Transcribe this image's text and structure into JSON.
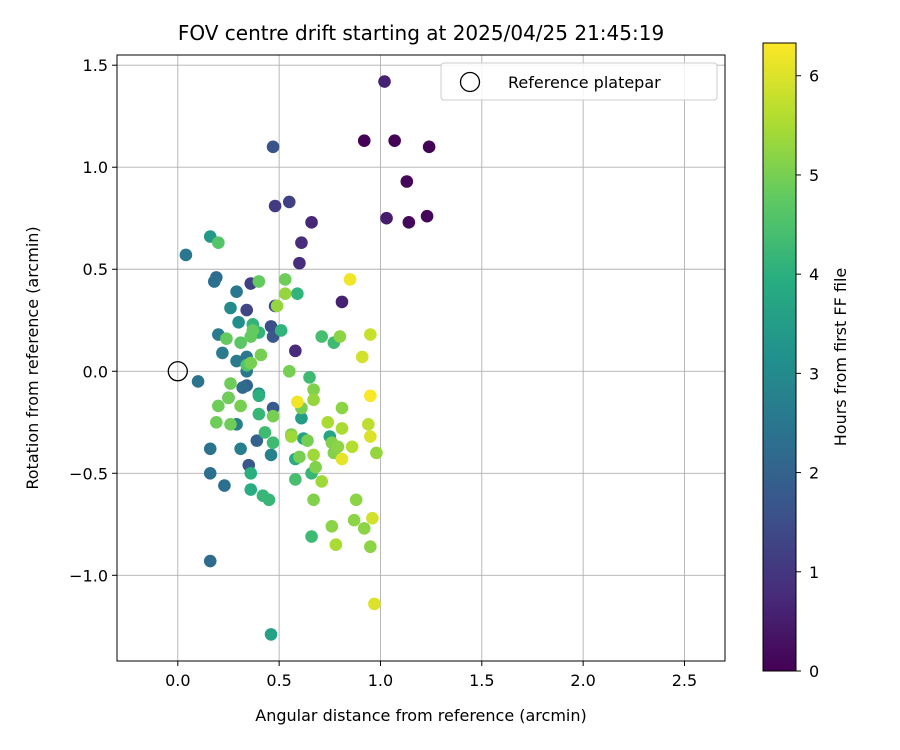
{
  "chart_data": {
    "type": "scatter",
    "title": "FOV centre drift starting at 2025/04/25 21:45:19",
    "xlabel": "Angular distance from reference (arcmin)",
    "ylabel": "Rotation from reference (arcmin)",
    "xlim": [
      -0.3,
      2.7
    ],
    "ylim": [
      -1.42,
      1.55
    ],
    "xticks": [
      "0.0",
      "0.5",
      "1.0",
      "1.5",
      "2.0",
      "2.5"
    ],
    "yticks": [
      "−1.0",
      "−0.5",
      "0.0",
      "0.5",
      "1.0",
      "1.5"
    ],
    "grid": true,
    "legend": {
      "placement": "upper right",
      "entries": [
        "Reference platepar"
      ]
    },
    "reference_point": {
      "x": 0.0,
      "y": 0.0
    },
    "colorbar": {
      "label": "Hours from first FF file",
      "range": [
        0,
        6.33
      ],
      "ticks": [
        "0",
        "1",
        "2",
        "3",
        "4",
        "5",
        "6"
      ],
      "colormap": "viridis"
    },
    "series": [
      {
        "values": [
          {
            "x": 0.92,
            "y": 1.13,
            "h": 0.05
          },
          {
            "x": 1.07,
            "y": 1.13,
            "h": 0.05
          },
          {
            "x": 1.24,
            "y": 1.1,
            "h": 0.05
          },
          {
            "x": 1.13,
            "y": 0.93,
            "h": 0.1
          },
          {
            "x": 1.23,
            "y": 0.76,
            "h": 0.1
          },
          {
            "x": 1.14,
            "y": 0.73,
            "h": 0.15
          },
          {
            "x": 1.03,
            "y": 0.75,
            "h": 0.5
          },
          {
            "x": 1.02,
            "y": 1.42,
            "h": 0.6
          },
          {
            "x": 0.81,
            "y": 0.34,
            "h": 0.6
          },
          {
            "x": 0.66,
            "y": 0.73,
            "h": 0.7
          },
          {
            "x": 0.61,
            "y": 0.63,
            "h": 0.8
          },
          {
            "x": 0.6,
            "y": 0.53,
            "h": 0.8
          },
          {
            "x": 0.58,
            "y": 0.1,
            "h": 0.8
          },
          {
            "x": 0.55,
            "y": 0.83,
            "h": 1.2
          },
          {
            "x": 0.48,
            "y": 0.81,
            "h": 1.1
          },
          {
            "x": 0.47,
            "y": 1.1,
            "h": 1.6
          },
          {
            "x": 0.36,
            "y": 0.43,
            "h": 1.2
          },
          {
            "x": 0.34,
            "y": 0.3,
            "h": 1.3
          },
          {
            "x": 0.48,
            "y": 0.32,
            "h": 1.4
          },
          {
            "x": 0.46,
            "y": 0.22,
            "h": 1.5
          },
          {
            "x": 0.47,
            "y": 0.17,
            "h": 1.7
          },
          {
            "x": 0.35,
            "y": -0.46,
            "h": 1.7
          },
          {
            "x": 0.47,
            "y": -0.18,
            "h": 1.8
          },
          {
            "x": 0.39,
            "y": -0.34,
            "h": 2.0
          },
          {
            "x": 0.34,
            "y": -0.07,
            "h": 2.0
          },
          {
            "x": 0.32,
            "y": -0.08,
            "h": 2.2
          },
          {
            "x": 0.25,
            "y": -0.13,
            "h": 2.0
          },
          {
            "x": 0.16,
            "y": -0.93,
            "h": 2.2
          },
          {
            "x": 0.16,
            "y": -0.5,
            "h": 2.3
          },
          {
            "x": 0.23,
            "y": -0.56,
            "h": 2.3
          },
          {
            "x": 0.16,
            "y": -0.38,
            "h": 2.4
          },
          {
            "x": 0.1,
            "y": -0.05,
            "h": 2.4
          },
          {
            "x": 0.04,
            "y": 0.57,
            "h": 2.5
          },
          {
            "x": 0.19,
            "y": 0.46,
            "h": 2.2
          },
          {
            "x": 0.18,
            "y": 0.44,
            "h": 2.3
          },
          {
            "x": 0.29,
            "y": 0.39,
            "h": 2.5
          },
          {
            "x": 0.2,
            "y": 0.18,
            "h": 2.6
          },
          {
            "x": 0.22,
            "y": 0.09,
            "h": 2.6
          },
          {
            "x": 0.29,
            "y": 0.05,
            "h": 2.6
          },
          {
            "x": 0.34,
            "y": 0.07,
            "h": 2.5
          },
          {
            "x": 0.34,
            "y": 0.0,
            "h": 2.5
          },
          {
            "x": 0.29,
            "y": -0.26,
            "h": 2.7
          },
          {
            "x": 0.31,
            "y": -0.38,
            "h": 2.7
          },
          {
            "x": 0.46,
            "y": -0.41,
            "h": 2.8
          },
          {
            "x": 0.26,
            "y": 0.31,
            "h": 3.0
          },
          {
            "x": 0.3,
            "y": 0.24,
            "h": 3.1
          },
          {
            "x": 0.4,
            "y": -0.11,
            "h": 3.2
          },
          {
            "x": 0.16,
            "y": 0.66,
            "h": 3.4
          },
          {
            "x": 0.61,
            "y": -0.23,
            "h": 3.5
          },
          {
            "x": 0.46,
            "y": -1.29,
            "h": 3.6
          },
          {
            "x": 0.62,
            "y": -0.33,
            "h": 3.6
          },
          {
            "x": 0.75,
            "y": -0.32,
            "h": 3.7
          },
          {
            "x": 0.58,
            "y": -0.43,
            "h": 3.9
          },
          {
            "x": 0.36,
            "y": -0.58,
            "h": 3.9
          },
          {
            "x": 0.36,
            "y": -0.5,
            "h": 4.0
          },
          {
            "x": 0.4,
            "y": -0.12,
            "h": 4.0
          },
          {
            "x": 0.37,
            "y": 0.23,
            "h": 4.1
          },
          {
            "x": 0.4,
            "y": 0.19,
            "h": 4.1
          },
          {
            "x": 0.51,
            "y": 0.2,
            "h": 4.1
          },
          {
            "x": 0.59,
            "y": 0.38,
            "h": 4.1
          },
          {
            "x": 0.4,
            "y": -0.21,
            "h": 4.2
          },
          {
            "x": 0.65,
            "y": -0.03,
            "h": 4.3
          },
          {
            "x": 0.77,
            "y": 0.14,
            "h": 4.3
          },
          {
            "x": 0.43,
            "y": -0.3,
            "h": 4.3
          },
          {
            "x": 0.66,
            "y": -0.5,
            "h": 4.2
          },
          {
            "x": 0.47,
            "y": -0.35,
            "h": 4.3
          },
          {
            "x": 0.66,
            "y": -0.81,
            "h": 4.3
          },
          {
            "x": 0.42,
            "y": -0.61,
            "h": 4.2
          },
          {
            "x": 0.45,
            "y": -0.63,
            "h": 4.2
          },
          {
            "x": 0.58,
            "y": -0.53,
            "h": 4.4
          },
          {
            "x": 0.71,
            "y": 0.17,
            "h": 4.4
          },
          {
            "x": 0.2,
            "y": 0.63,
            "h": 4.6
          },
          {
            "x": 0.34,
            "y": 0.03,
            "h": 4.6
          },
          {
            "x": 0.31,
            "y": 0.14,
            "h": 4.7
          },
          {
            "x": 0.24,
            "y": 0.16,
            "h": 4.8
          },
          {
            "x": 0.36,
            "y": 0.17,
            "h": 4.8
          },
          {
            "x": 0.37,
            "y": 0.2,
            "h": 4.8
          },
          {
            "x": 0.4,
            "y": 0.44,
            "h": 4.8
          },
          {
            "x": 0.53,
            "y": 0.45,
            "h": 4.9
          },
          {
            "x": 0.26,
            "y": -0.06,
            "h": 4.9
          },
          {
            "x": 0.25,
            "y": -0.13,
            "h": 4.9
          },
          {
            "x": 0.2,
            "y": -0.17,
            "h": 4.9
          },
          {
            "x": 0.19,
            "y": -0.25,
            "h": 4.9
          },
          {
            "x": 0.26,
            "y": -0.26,
            "h": 4.9
          },
          {
            "x": 0.31,
            "y": -0.17,
            "h": 5.0
          },
          {
            "x": 0.36,
            "y": 0.04,
            "h": 5.0
          },
          {
            "x": 0.41,
            "y": 0.08,
            "h": 5.0
          },
          {
            "x": 0.47,
            "y": -0.22,
            "h": 5.0
          },
          {
            "x": 0.55,
            "y": 0.0,
            "h": 5.0
          },
          {
            "x": 0.56,
            "y": -0.31,
            "h": 5.0
          },
          {
            "x": 0.6,
            "y": -0.42,
            "h": 5.0
          },
          {
            "x": 0.61,
            "y": -0.18,
            "h": 5.0
          },
          {
            "x": 0.64,
            "y": -0.34,
            "h": 5.0
          },
          {
            "x": 0.67,
            "y": -0.09,
            "h": 5.1
          },
          {
            "x": 0.68,
            "y": -0.47,
            "h": 5.1
          },
          {
            "x": 0.67,
            "y": -0.63,
            "h": 5.1
          },
          {
            "x": 0.76,
            "y": -0.35,
            "h": 5.1
          },
          {
            "x": 0.77,
            "y": -0.4,
            "h": 5.1
          },
          {
            "x": 0.8,
            "y": 0.17,
            "h": 5.2
          },
          {
            "x": 0.81,
            "y": -0.18,
            "h": 5.2
          },
          {
            "x": 0.79,
            "y": -0.37,
            "h": 5.2
          },
          {
            "x": 0.76,
            "y": -0.76,
            "h": 5.2
          },
          {
            "x": 0.88,
            "y": -0.63,
            "h": 5.2
          },
          {
            "x": 0.87,
            "y": -0.73,
            "h": 5.2
          },
          {
            "x": 0.92,
            "y": -0.77,
            "h": 5.2
          },
          {
            "x": 0.95,
            "y": -0.86,
            "h": 5.2
          },
          {
            "x": 0.98,
            "y": -0.4,
            "h": 5.3
          },
          {
            "x": 0.53,
            "y": 0.38,
            "h": 5.3
          },
          {
            "x": 0.49,
            "y": 0.32,
            "h": 5.3
          },
          {
            "x": 0.67,
            "y": -0.14,
            "h": 5.3
          },
          {
            "x": 0.56,
            "y": -0.32,
            "h": 5.4
          },
          {
            "x": 0.67,
            "y": -0.41,
            "h": 5.4
          },
          {
            "x": 0.71,
            "y": -0.54,
            "h": 5.4
          },
          {
            "x": 0.74,
            "y": -0.25,
            "h": 5.5
          },
          {
            "x": 0.81,
            "y": -0.28,
            "h": 5.5
          },
          {
            "x": 0.78,
            "y": -0.85,
            "h": 5.5
          },
          {
            "x": 0.86,
            "y": -0.37,
            "h": 5.6
          },
          {
            "x": 0.94,
            "y": -0.26,
            "h": 5.7
          },
          {
            "x": 0.95,
            "y": 0.18,
            "h": 5.8
          },
          {
            "x": 0.91,
            "y": 0.07,
            "h": 5.9
          },
          {
            "x": 0.96,
            "y": -0.72,
            "h": 5.9
          },
          {
            "x": 0.95,
            "y": -0.32,
            "h": 6.0
          },
          {
            "x": 0.97,
            "y": -1.14,
            "h": 6.0
          },
          {
            "x": 0.81,
            "y": -0.43,
            "h": 6.1
          },
          {
            "x": 0.59,
            "y": -0.15,
            "h": 6.2
          },
          {
            "x": 0.85,
            "y": 0.45,
            "h": 6.2
          },
          {
            "x": 0.95,
            "y": -0.12,
            "h": 6.3
          }
        ]
      }
    ]
  }
}
